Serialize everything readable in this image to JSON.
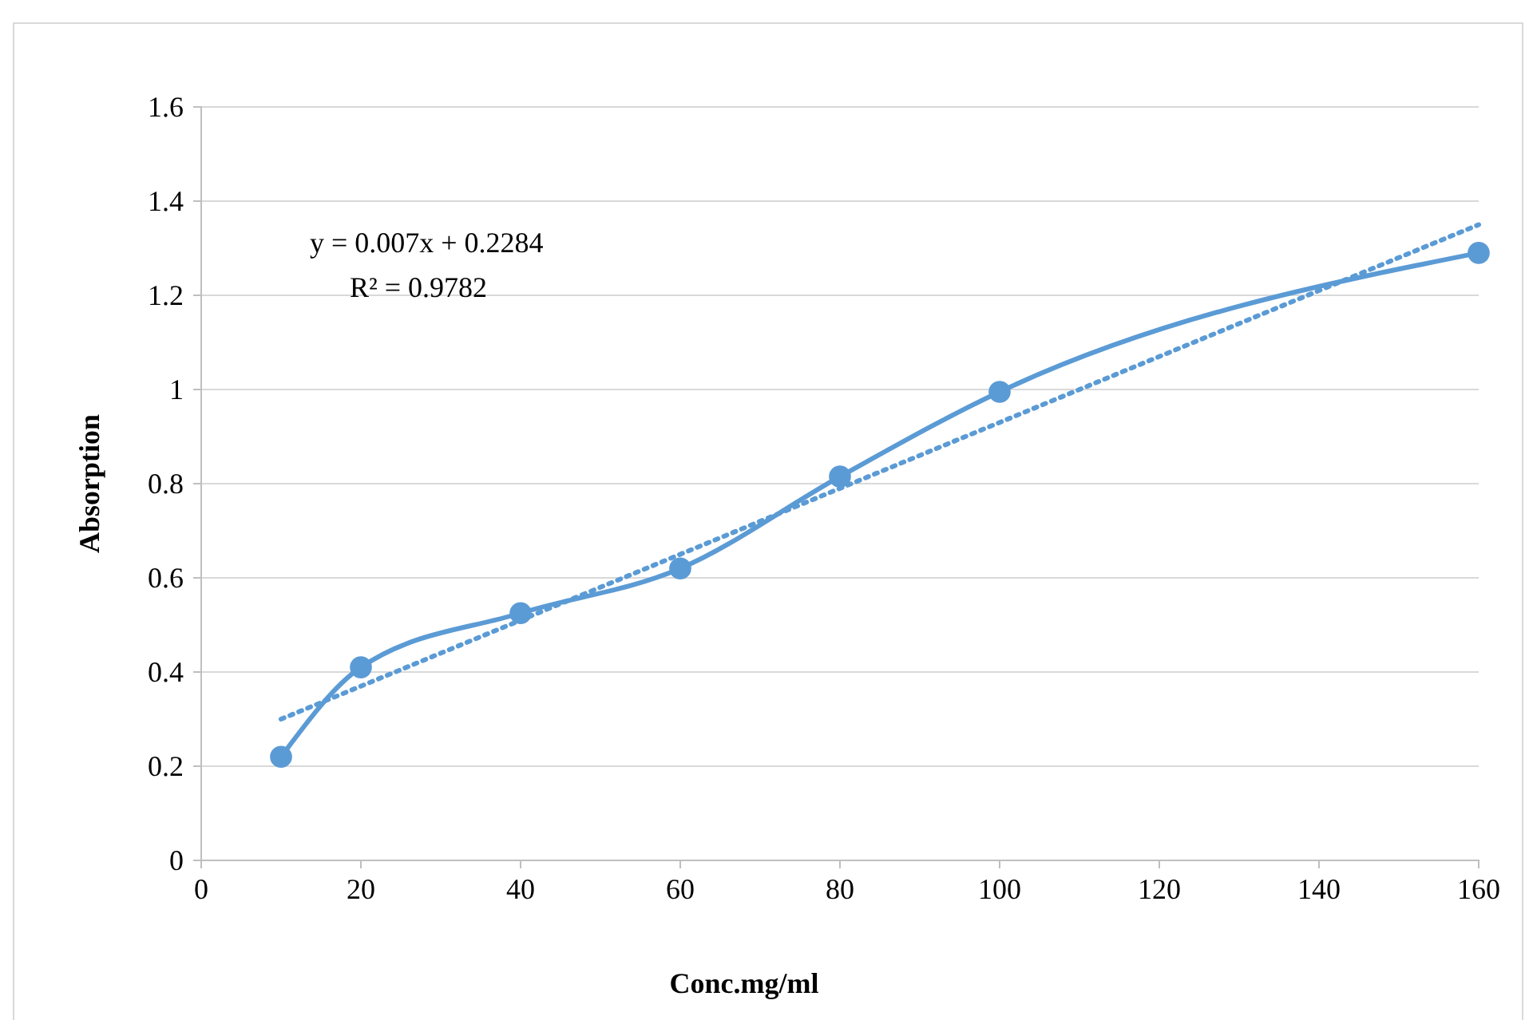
{
  "chart_data": {
    "type": "line",
    "xlabel": "Conc.mg/ml",
    "ylabel": "Absorption",
    "xlim": [
      0,
      160
    ],
    "xticks": [
      0,
      20,
      40,
      60,
      80,
      100,
      120,
      140,
      160
    ],
    "ylim": [
      0,
      1.6
    ],
    "yticks": [
      0,
      0.2,
      0.4,
      0.6,
      0.8,
      1,
      1.2,
      1.4,
      1.6
    ],
    "grid": "y",
    "annotations": [
      "y = 0.007x + 0.2284",
      "R² = 0.9782"
    ],
    "series": [
      {
        "type": "line",
        "color": "#5b9bd5",
        "x": [
          10,
          20,
          40,
          60,
          80,
          100,
          160
        ],
        "values": [
          0.22,
          0.41,
          0.525,
          0.62,
          0.815,
          0.995,
          1.29
        ],
        "marker": "circle",
        "line_style": "solid"
      },
      {
        "type": "line",
        "color": "#5b9bd5",
        "x": [
          10,
          160
        ],
        "values": [
          0.3,
          1.35
        ],
        "marker": "none",
        "line_style": "dotted"
      }
    ]
  }
}
